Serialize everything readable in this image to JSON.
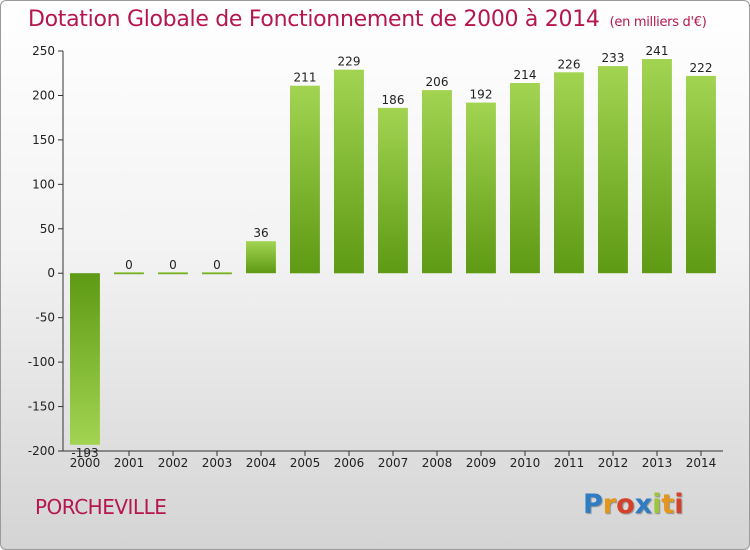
{
  "header": {
    "title": "Dotation Globale de Fonctionnement de 2000 à 2014",
    "unit": "(en milliers d'€)"
  },
  "footer": {
    "municipality": "PORCHEVILLE",
    "logo": {
      "letters": [
        "P",
        "r",
        "o",
        "x",
        "i",
        "t",
        "i"
      ],
      "colors": [
        "#2d7cc4",
        "#e2961c",
        "#d4402a",
        "#2d7cc4",
        "#9cc63c",
        "#e2961c",
        "#d4402a"
      ]
    }
  },
  "chart_data": {
    "type": "bar",
    "title": "Dotation Globale de Fonctionnement de 2000 à 2014",
    "subtitle": "(en milliers d'€)",
    "xlabel": "",
    "ylabel": "",
    "categories": [
      "2000",
      "2001",
      "2002",
      "2003",
      "2004",
      "2005",
      "2006",
      "2007",
      "2008",
      "2009",
      "2010",
      "2011",
      "2012",
      "2013",
      "2014"
    ],
    "values": [
      -193,
      0,
      0,
      0,
      36,
      211,
      229,
      186,
      206,
      192,
      214,
      226,
      233,
      241,
      222
    ],
    "data_labels": [
      "-193",
      "0",
      "0",
      "0",
      "36",
      "211",
      "229",
      "186",
      "206",
      "192",
      "214",
      "226",
      "233",
      "241",
      "222"
    ],
    "ylim": [
      -200,
      250
    ],
    "yticks": [
      -200,
      -150,
      -100,
      -50,
      0,
      50,
      100,
      150,
      200,
      250
    ],
    "ytick_labels": [
      "-200",
      "-150",
      "-100",
      "-50",
      "0",
      "50",
      "100",
      "150",
      "200",
      "250"
    ],
    "grid": false,
    "bar_color_light": "#a2d452",
    "bar_color_dark": "#5e9a14",
    "legend": "none"
  }
}
